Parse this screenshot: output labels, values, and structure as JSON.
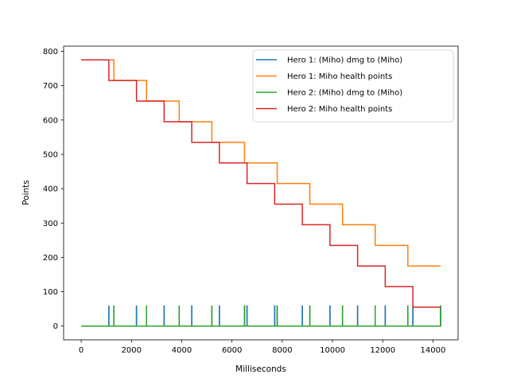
{
  "chart_data": {
    "type": "line",
    "title": "",
    "xlabel": "Milliseconds",
    "ylabel": "Points",
    "xlim": [
      -700,
      15000
    ],
    "ylim": [
      -40,
      815
    ],
    "xticks": [
      0,
      2000,
      4000,
      6000,
      8000,
      10000,
      12000,
      14000
    ],
    "yticks": [
      0,
      100,
      200,
      300,
      400,
      500,
      600,
      700,
      800
    ],
    "grid": false,
    "legend_position": "top-right",
    "series": [
      {
        "name": "Hero 1: (Miho) dmg to (Miho)",
        "color": "#1f77b4",
        "style": "spikes",
        "baseline": 0,
        "spike_value": 60,
        "spike_times": [
          1100,
          2200,
          3300,
          4400,
          5500,
          6600,
          7700,
          8800,
          9900,
          11000,
          12100,
          13200,
          14300
        ]
      },
      {
        "name": "Hero 1: Miho health points",
        "color": "#ff7f0e",
        "style": "step",
        "x": [
          0,
          1300,
          2600,
          3900,
          5200,
          6500,
          7800,
          9100,
          10400,
          11700,
          13000,
          14300
        ],
        "y": [
          775,
          715,
          655,
          595,
          535,
          475,
          415,
          355,
          295,
          235,
          175,
          175
        ]
      },
      {
        "name": "Hero 2: (Miho) dmg to (Miho)",
        "color": "#2ca02c",
        "style": "spikes",
        "baseline": 0,
        "spike_value": 60,
        "spike_times": [
          1300,
          2600,
          3900,
          5200,
          6500,
          7800,
          9100,
          10400,
          11700,
          13000,
          14300
        ]
      },
      {
        "name": "Hero 2: Miho health points",
        "color": "#d62728",
        "style": "step",
        "x": [
          0,
          1100,
          2200,
          3300,
          4400,
          5500,
          6600,
          7700,
          8800,
          9900,
          11000,
          12100,
          13200,
          14300
        ],
        "y": [
          775,
          715,
          655,
          595,
          535,
          475,
          415,
          355,
          295,
          235,
          175,
          115,
          55,
          55
        ]
      }
    ]
  }
}
